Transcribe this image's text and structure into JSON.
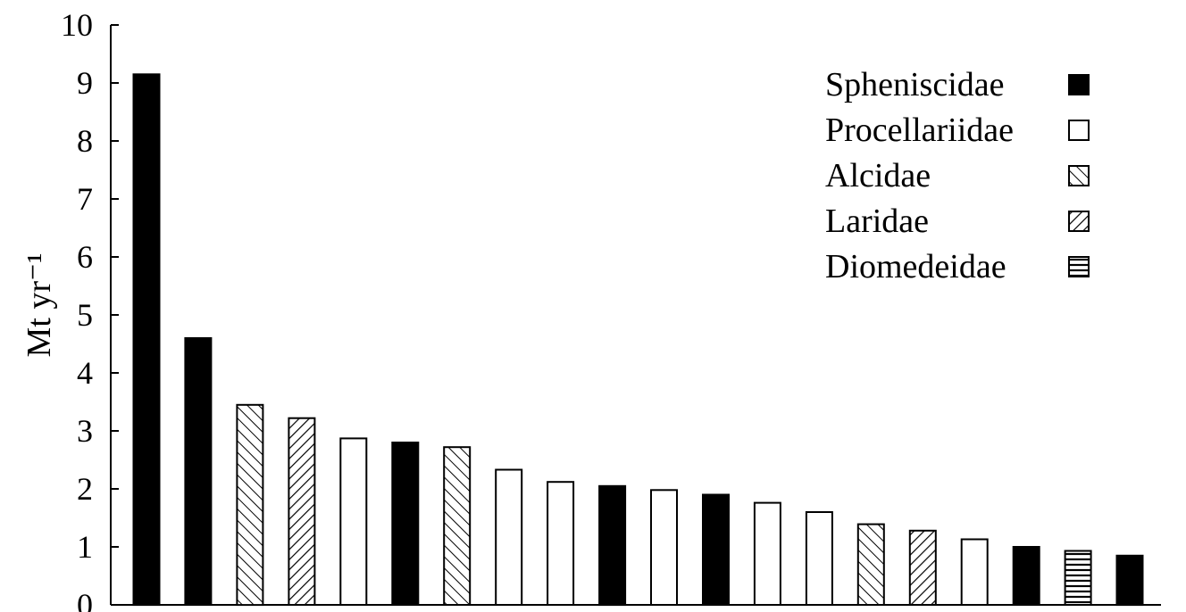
{
  "chart_data": {
    "type": "bar",
    "title": "",
    "xlabel": "",
    "ylabel": "Mt yr⁻¹",
    "ylim": [
      0,
      10
    ],
    "yticks": [
      "0",
      "1",
      "2",
      "3",
      "4",
      "5",
      "6",
      "7",
      "8",
      "9",
      "10"
    ],
    "legend": "top-right",
    "grid": false,
    "families": [
      {
        "name": "Spheniscidae",
        "pattern": "solid"
      },
      {
        "name": "Procellariidae",
        "pattern": "empty"
      },
      {
        "name": "Alcidae",
        "pattern": "diagonal-back"
      },
      {
        "name": "Laridae",
        "pattern": "diagonal-forward"
      },
      {
        "name": "Diomedeidae",
        "pattern": "horizontal"
      }
    ],
    "bars": [
      {
        "family": "Spheniscidae",
        "value": 9.15
      },
      {
        "family": "Spheniscidae",
        "value": 4.6
      },
      {
        "family": "Alcidae",
        "value": 3.45
      },
      {
        "family": "Laridae",
        "value": 3.22
      },
      {
        "family": "Procellariidae",
        "value": 2.87
      },
      {
        "family": "Spheniscidae",
        "value": 2.8
      },
      {
        "family": "Alcidae",
        "value": 2.72
      },
      {
        "family": "Procellariidae",
        "value": 2.33
      },
      {
        "family": "Procellariidae",
        "value": 2.12
      },
      {
        "family": "Spheniscidae",
        "value": 2.05
      },
      {
        "family": "Procellariidae",
        "value": 1.98
      },
      {
        "family": "Spheniscidae",
        "value": 1.9
      },
      {
        "family": "Procellariidae",
        "value": 1.76
      },
      {
        "family": "Procellariidae",
        "value": 1.6
      },
      {
        "family": "Alcidae",
        "value": 1.39
      },
      {
        "family": "Laridae",
        "value": 1.28
      },
      {
        "family": "Procellariidae",
        "value": 1.13
      },
      {
        "family": "Spheniscidae",
        "value": 1.0
      },
      {
        "family": "Diomedeidae",
        "value": 0.93
      },
      {
        "family": "Spheniscidae",
        "value": 0.85
      }
    ]
  }
}
